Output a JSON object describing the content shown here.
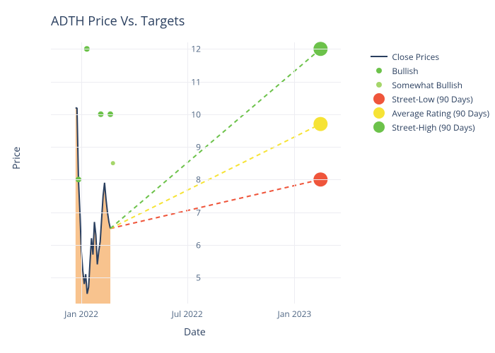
{
  "title": "ADTH Price Vs. Targets",
  "x_label": "Date",
  "y_label": "Price",
  "background_color": "#ffffff",
  "grid_color": "#ededf2",
  "text_color": "#2a3f5f",
  "tick_color": "#506784",
  "title_fontsize": 18,
  "label_fontsize": 14,
  "tick_fontsize": 12,
  "ylim": [
    4.2,
    12.2
  ],
  "y_ticks": [
    5,
    6,
    7,
    8,
    9,
    10,
    11,
    12
  ],
  "x_ticks": [
    {
      "label": "Jan 2022",
      "t": 0.105
    },
    {
      "label": "Jul 2022",
      "t": 0.47
    },
    {
      "label": "Jan 2023",
      "t": 0.84
    }
  ],
  "close_line": {
    "color": "#2a3f5f",
    "width": 2,
    "area_fill": "#f7b97a",
    "area_opacity": 0.85,
    "points": [
      {
        "t": 0.085,
        "y": 10.2
      },
      {
        "t": 0.09,
        "y": 10.18
      },
      {
        "t": 0.095,
        "y": 8.0
      },
      {
        "t": 0.1,
        "y": 7.0
      },
      {
        "t": 0.105,
        "y": 5.8
      },
      {
        "t": 0.11,
        "y": 5.2
      },
      {
        "t": 0.115,
        "y": 4.8
      },
      {
        "t": 0.12,
        "y": 5.1
      },
      {
        "t": 0.125,
        "y": 4.5
      },
      {
        "t": 0.13,
        "y": 4.7
      },
      {
        "t": 0.135,
        "y": 5.5
      },
      {
        "t": 0.14,
        "y": 6.2
      },
      {
        "t": 0.145,
        "y": 5.7
      },
      {
        "t": 0.15,
        "y": 6.7
      },
      {
        "t": 0.155,
        "y": 6.3
      },
      {
        "t": 0.16,
        "y": 5.4
      },
      {
        "t": 0.165,
        "y": 5.8
      },
      {
        "t": 0.17,
        "y": 6.1
      },
      {
        "t": 0.175,
        "y": 6.8
      },
      {
        "t": 0.18,
        "y": 7.5
      },
      {
        "t": 0.185,
        "y": 7.9
      },
      {
        "t": 0.19,
        "y": 7.4
      },
      {
        "t": 0.195,
        "y": 7.0
      },
      {
        "t": 0.2,
        "y": 6.7
      },
      {
        "t": 0.205,
        "y": 6.5
      }
    ]
  },
  "bullish_points": {
    "color": "#6cc24a",
    "radius": 4,
    "points": [
      {
        "t": 0.095,
        "y": 8.0
      },
      {
        "t": 0.124,
        "y": 12.0
      },
      {
        "t": 0.172,
        "y": 10.0
      },
      {
        "t": 0.205,
        "y": 10.0
      }
    ]
  },
  "somewhat_bullish_points": {
    "color": "#a5d66a",
    "radius": 3,
    "points": [
      {
        "t": 0.214,
        "y": 8.5
      }
    ]
  },
  "target_lines": [
    {
      "name": "street-low",
      "color": "#ef553b",
      "dash": "6,5",
      "width": 2,
      "start": {
        "t": 0.205,
        "y": 6.5
      },
      "end": {
        "t": 0.93,
        "y": 8.0
      },
      "dot_radius": 10
    },
    {
      "name": "average-rating",
      "color": "#f6e335",
      "dash": "6,5",
      "width": 2,
      "start": {
        "t": 0.205,
        "y": 6.5
      },
      "end": {
        "t": 0.93,
        "y": 9.7
      },
      "dot_radius": 10
    },
    {
      "name": "street-high",
      "color": "#6cc24a",
      "dash": "6,5",
      "width": 2,
      "start": {
        "t": 0.205,
        "y": 6.5
      },
      "end": {
        "t": 0.93,
        "y": 12.0
      },
      "dot_radius": 10
    }
  ],
  "legend": {
    "items": [
      {
        "type": "line",
        "color": "#2a3f5f",
        "label": "Close Prices"
      },
      {
        "type": "dot-sm",
        "color": "#6cc24a",
        "label": "Bullish"
      },
      {
        "type": "dot-sm",
        "color": "#a5d66a",
        "label": "Somewhat Bullish"
      },
      {
        "type": "dot-lg",
        "color": "#ef553b",
        "label": "Street-Low (90 Days)"
      },
      {
        "type": "dot-lg",
        "color": "#f6e335",
        "label": "Average Rating (90 Days)"
      },
      {
        "type": "dot-lg",
        "color": "#6cc24a",
        "label": "Street-High (90 Days)"
      }
    ]
  }
}
